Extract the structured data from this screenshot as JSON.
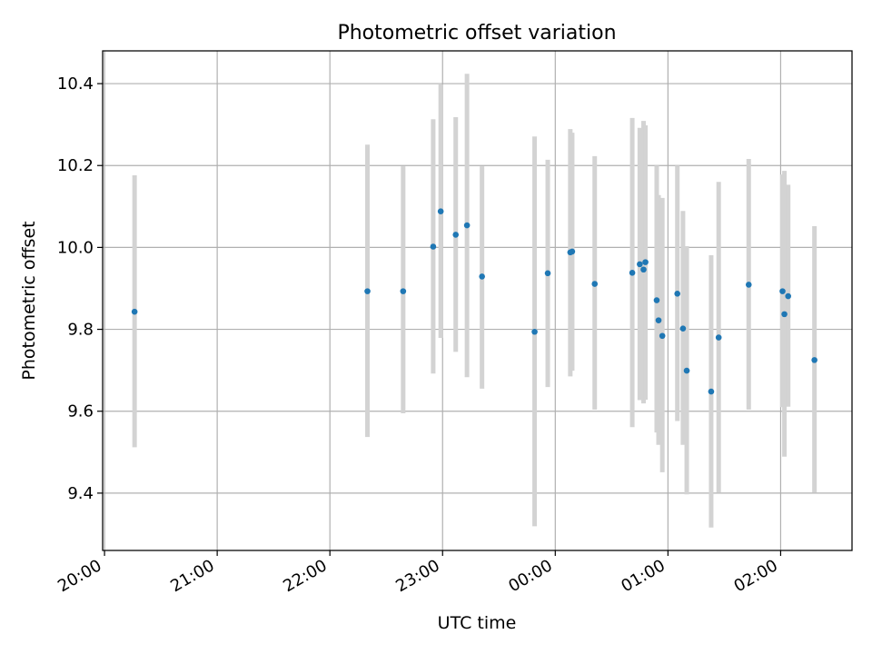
{
  "chart_data": {
    "type": "scatter",
    "title": "Photometric offset variation",
    "xlabel": "UTC time",
    "ylabel": "Photometric offset",
    "x_unit": "UTC time (h:mm), times after 24:00 fall on the following day",
    "xlim": [
      "19:59",
      "02:38"
    ],
    "ylim": [
      9.26,
      10.48
    ],
    "x_ticks": [
      "20:00",
      "21:00",
      "22:00",
      "23:00",
      "00:00",
      "01:00",
      "02:00"
    ],
    "y_ticks": [
      "9.4",
      "9.6",
      "9.8",
      "10.0",
      "10.2",
      "10.4"
    ],
    "grid": true,
    "colors": {
      "marker": "#1f77b4",
      "errorbar": "#d3d3d3",
      "grid": "#b0b0b0",
      "axes": "#000000"
    },
    "points": [
      {
        "t": "20:16",
        "y": 9.843,
        "lo": 9.512,
        "hi": 10.176
      },
      {
        "t": "22:20",
        "y": 9.893,
        "lo": 9.537,
        "hi": 10.251
      },
      {
        "t": "22:39",
        "y": 9.893,
        "lo": 9.595,
        "hi": 10.198
      },
      {
        "t": "22:55",
        "y": 10.002,
        "lo": 9.692,
        "hi": 10.313
      },
      {
        "t": "22:59",
        "y": 10.088,
        "lo": 9.779,
        "hi": 10.398
      },
      {
        "t": "23:07",
        "y": 10.031,
        "lo": 9.745,
        "hi": 10.318
      },
      {
        "t": "23:13",
        "y": 10.054,
        "lo": 9.683,
        "hi": 10.424
      },
      {
        "t": "23:21",
        "y": 9.929,
        "lo": 9.655,
        "hi": 10.198
      },
      {
        "t": "23:49",
        "y": 9.794,
        "lo": 9.319,
        "hi": 10.271
      },
      {
        "t": "23:56",
        "y": 9.937,
        "lo": 9.659,
        "hi": 10.214
      },
      {
        "t": "24:08",
        "y": 9.988,
        "lo": 9.685,
        "hi": 10.289
      },
      {
        "t": "24:09",
        "y": 9.99,
        "lo": 9.699,
        "hi": 10.28
      },
      {
        "t": "24:21",
        "y": 9.911,
        "lo": 9.604,
        "hi": 10.223
      },
      {
        "t": "24:41",
        "y": 9.938,
        "lo": 9.561,
        "hi": 10.316
      },
      {
        "t": "24:45",
        "y": 9.959,
        "lo": 9.627,
        "hi": 10.292
      },
      {
        "t": "24:47",
        "y": 9.946,
        "lo": 9.619,
        "hi": 10.309
      },
      {
        "t": "24:48",
        "y": 9.964,
        "lo": 9.628,
        "hi": 10.298
      },
      {
        "t": "24:54",
        "y": 9.871,
        "lo": 9.548,
        "hi": 10.2
      },
      {
        "t": "24:55",
        "y": 9.822,
        "lo": 9.518,
        "hi": 10.128
      },
      {
        "t": "24:57",
        "y": 9.784,
        "lo": 9.451,
        "hi": 10.121
      },
      {
        "t": "25:05",
        "y": 9.887,
        "lo": 9.576,
        "hi": 10.2
      },
      {
        "t": "25:08",
        "y": 9.802,
        "lo": 9.518,
        "hi": 10.089
      },
      {
        "t": "25:10",
        "y": 9.699,
        "lo": 9.397,
        "hi": 10.003
      },
      {
        "t": "25:23",
        "y": 9.648,
        "lo": 9.316,
        "hi": 9.981
      },
      {
        "t": "25:27",
        "y": 9.78,
        "lo": 9.402,
        "hi": 10.16
      },
      {
        "t": "25:43",
        "y": 9.909,
        "lo": 9.604,
        "hi": 10.216
      },
      {
        "t": "26:01",
        "y": 9.893,
        "lo": 9.61,
        "hi": 10.178
      },
      {
        "t": "26:02",
        "y": 9.837,
        "lo": 9.489,
        "hi": 10.187
      },
      {
        "t": "26:04",
        "y": 9.881,
        "lo": 9.611,
        "hi": 10.153
      },
      {
        "t": "26:18",
        "y": 9.725,
        "lo": 9.401,
        "hi": 10.052
      }
    ]
  }
}
